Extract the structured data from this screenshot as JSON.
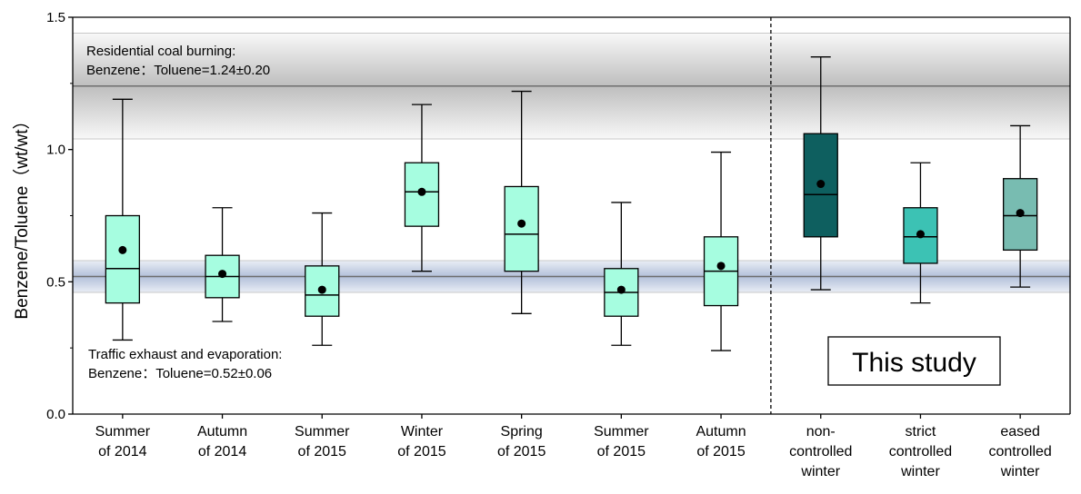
{
  "chart_data": {
    "type": "box",
    "ylabel": "Benzene/Toluene（wt/wt）",
    "xlabel": "",
    "ylim": [
      0.0,
      1.5
    ],
    "yticks": [
      0.0,
      0.5,
      1.0,
      1.5
    ],
    "ytick_labels": [
      "0.0",
      "0.5",
      "1.0",
      "1.5"
    ],
    "grid": false,
    "categories": [
      [
        "Summer",
        "of 2014"
      ],
      [
        "Autumn",
        "of 2014"
      ],
      [
        "Summer",
        "of 2015"
      ],
      [
        "Winter",
        "of 2015"
      ],
      [
        "Spring",
        "of 2015"
      ],
      [
        "Summer",
        "of 2015"
      ],
      [
        "Autumn",
        "of 2015"
      ],
      [
        "non-",
        "controlled",
        "winter"
      ],
      [
        "strict",
        "controlled",
        "winter"
      ],
      [
        "eased",
        "controlled",
        "winter"
      ]
    ],
    "boxes": [
      {
        "whisker_low": 0.28,
        "q1": 0.42,
        "median": 0.55,
        "q3": 0.75,
        "whisker_high": 1.19,
        "mean": 0.62
      },
      {
        "whisker_low": 0.35,
        "q1": 0.44,
        "median": 0.52,
        "q3": 0.6,
        "whisker_high": 0.78,
        "mean": 0.53
      },
      {
        "whisker_low": 0.26,
        "q1": 0.37,
        "median": 0.45,
        "q3": 0.56,
        "whisker_high": 0.76,
        "mean": 0.47
      },
      {
        "whisker_low": 0.54,
        "q1": 0.71,
        "median": 0.84,
        "q3": 0.95,
        "whisker_high": 1.17,
        "mean": 0.84
      },
      {
        "whisker_low": 0.38,
        "q1": 0.54,
        "median": 0.68,
        "q3": 0.86,
        "whisker_high": 1.22,
        "mean": 0.72
      },
      {
        "whisker_low": 0.26,
        "q1": 0.37,
        "median": 0.46,
        "q3": 0.55,
        "whisker_high": 0.8,
        "mean": 0.47
      },
      {
        "whisker_low": 0.24,
        "q1": 0.41,
        "median": 0.54,
        "q3": 0.67,
        "whisker_high": 0.99,
        "mean": 0.56
      },
      {
        "whisker_low": 0.47,
        "q1": 0.67,
        "median": 0.83,
        "q3": 1.06,
        "whisker_high": 1.35,
        "mean": 0.87
      },
      {
        "whisker_low": 0.42,
        "q1": 0.57,
        "median": 0.67,
        "q3": 0.78,
        "whisker_high": 0.95,
        "mean": 0.68
      },
      {
        "whisker_low": 0.48,
        "q1": 0.62,
        "median": 0.75,
        "q3": 0.89,
        "whisker_high": 1.09,
        "mean": 0.76
      }
    ],
    "box_colors": [
      "#a6fde0",
      "#a6fde0",
      "#a6fde0",
      "#a6fde0",
      "#a6fde0",
      "#a6fde0",
      "#a6fde0",
      "#0e5f5f",
      "#3cc2b4",
      "#78bcb1"
    ],
    "reference_bands": [
      {
        "name": "coal",
        "label_lines": [
          "Residential coal burning:",
          "Benzene：Toluene=1.24±0.20"
        ],
        "center": 1.24,
        "half_width": 0.2,
        "color": "#b9b9b9"
      },
      {
        "name": "traffic",
        "label_lines": [
          "Traffic exhaust and evaporation:",
          "Benzene：Toluene=0.52±0.06"
        ],
        "center": 0.52,
        "half_width": 0.06,
        "color": "#9fb0d0"
      }
    ],
    "separator_after_index": 6,
    "annotation": "This study"
  }
}
